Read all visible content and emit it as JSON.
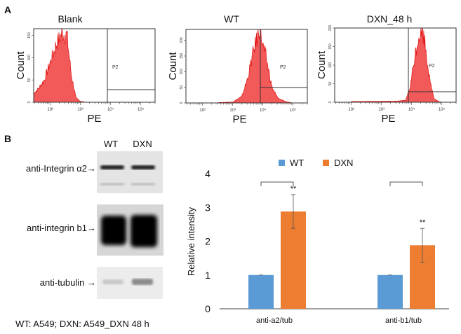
{
  "panels": {
    "a": "A",
    "b": "B"
  },
  "flow": {
    "xlabel": "PE",
    "ylabel": "Count",
    "gate_label": "P2",
    "xticks": [
      "10²",
      "10³",
      "10⁴",
      "10⁵"
    ],
    "plots": [
      {
        "title": "Blank",
        "yticks": [
          "0",
          "50",
          "100",
          "150"
        ]
      },
      {
        "title": "WT",
        "yticks": [
          "0",
          "50",
          "100",
          "150",
          "200"
        ]
      },
      {
        "title": "DXN_48 h",
        "yticks": [
          "0",
          "50",
          "100",
          "150",
          "200"
        ]
      }
    ],
    "fill_color": "#f25a5a",
    "line_color": "#e01010"
  },
  "blot": {
    "lanes": [
      "WT",
      "DXN"
    ],
    "rows": [
      {
        "label": "anti-Integrin α2→"
      },
      {
        "label": "anti-integrin b1→"
      },
      {
        "label": "anti-tubulin →"
      }
    ],
    "footnote": "WT: A549;  DXN: A549_DXN 48 h"
  },
  "chart_data": [
    {
      "type": "area",
      "title": "Blank",
      "xlabel": "PE",
      "ylabel": "Count",
      "xscale": "log",
      "xlim": [
        28,
        300000
      ],
      "ylim": [
        0,
        165
      ],
      "gate": "P2",
      "x": [
        28,
        40,
        63,
        100,
        158,
        251,
        355,
        501,
        708,
        1000,
        1585
      ],
      "y": [
        20,
        30,
        50,
        90,
        130,
        155,
        150,
        60,
        10,
        2,
        0
      ]
    },
    {
      "type": "area",
      "title": "WT",
      "xlabel": "PE",
      "ylabel": "Count",
      "xscale": "log",
      "xlim": [
        28,
        300000
      ],
      "ylim": [
        0,
        235
      ],
      "gate": "P2",
      "x": [
        316,
        1000,
        1995,
        3162,
        5012,
        7079,
        7943,
        10000,
        12589,
        15849,
        19953,
        31623,
        63096,
        100000
      ],
      "y": [
        1,
        3,
        20,
        80,
        170,
        220,
        245,
        180,
        150,
        100,
        50,
        15,
        3,
        0
      ]
    },
    {
      "type": "area",
      "title": "DXN_48 h",
      "xlabel": "PE",
      "ylabel": "Count",
      "xscale": "log",
      "xlim": [
        28,
        300000
      ],
      "ylim": [
        0,
        200
      ],
      "gate": "P2",
      "x": [
        100,
        3162,
        6310,
        8913,
        12589,
        17783,
        22387,
        28184,
        39811,
        56234,
        79433,
        100000
      ],
      "y": [
        2,
        3,
        5,
        40,
        120,
        185,
        195,
        160,
        60,
        10,
        2,
        0
      ]
    },
    {
      "type": "bar",
      "categories": [
        "anti-a2/tub",
        "anti-b1/tub"
      ],
      "series": [
        {
          "name": "WT",
          "values": [
            1.0,
            1.0
          ],
          "errors": [
            0.0,
            0.0
          ],
          "color": "#5b9bd5"
        },
        {
          "name": "DXN",
          "values": [
            2.88,
            1.88
          ],
          "errors": [
            0.5,
            0.5
          ],
          "color": "#ed7d31"
        }
      ],
      "significance": [
        "**",
        "**"
      ],
      "ylabel": "Relative intensity",
      "yticks": [
        "0",
        "1",
        "2",
        "3",
        "4"
      ],
      "ylim": [
        0,
        4
      ],
      "legend": "top"
    }
  ]
}
